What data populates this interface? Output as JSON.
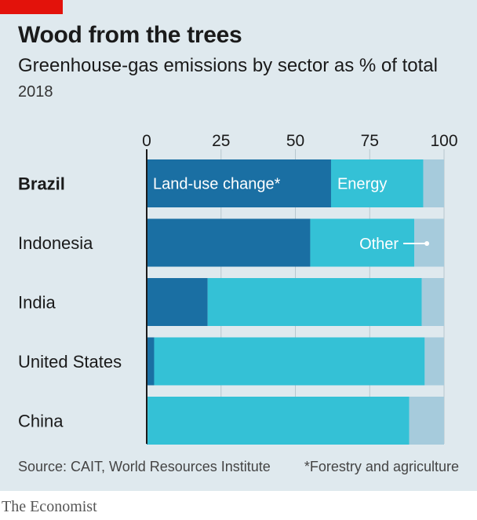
{
  "header": {
    "title": "Wood from the trees",
    "subtitle": "Greenhouse-gas emissions by sector as % of total",
    "year": "2018"
  },
  "footer": {
    "source": "Source: CAIT, World Resources Institute",
    "footnote": "*Forestry and agriculture",
    "brand": "The Economist"
  },
  "colors": {
    "panel": "#dfe9ee",
    "tag": "#e3120b",
    "land_use": "#1a6fa3",
    "energy": "#34c1d6",
    "other": "#a6cbdc",
    "grid": "#b8c7ce",
    "axis": "#1a1a1a"
  },
  "chart_data": {
    "type": "bar",
    "orientation": "horizontal",
    "stacked": true,
    "categories": [
      "Brazil",
      "Indonesia",
      "India",
      "United States",
      "China"
    ],
    "highlight_category": "Brazil",
    "series": [
      {
        "name": "Land-use change*",
        "values": [
          62,
          55,
          20.5,
          2.5,
          0.3
        ]
      },
      {
        "name": "Energy",
        "values": [
          31,
          35,
          72,
          91,
          88
        ]
      },
      {
        "name": "Other",
        "values": [
          7,
          10,
          7.5,
          6.5,
          11.7
        ]
      }
    ],
    "xlim": [
      0,
      100
    ],
    "xticks": [
      "0",
      "25",
      "50",
      "75",
      "100"
    ],
    "grid": true,
    "xlabel": "",
    "ylabel": ""
  }
}
